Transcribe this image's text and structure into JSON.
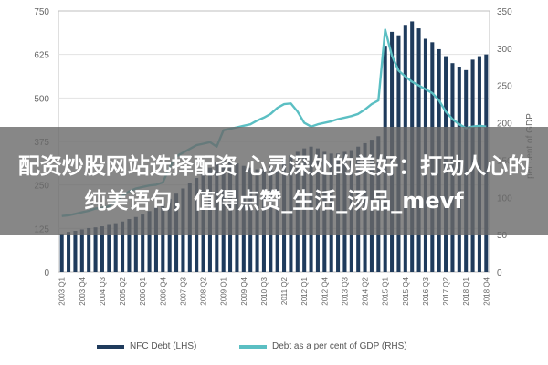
{
  "chart_data": {
    "type": "bar",
    "x_categories": [
      "2003 Q1",
      "2003 Q2",
      "2003 Q3",
      "2003 Q4",
      "2004 Q1",
      "2004 Q2",
      "2004 Q3",
      "2004 Q4",
      "2005 Q1",
      "2005 Q2",
      "2005 Q3",
      "2005 Q4",
      "2006 Q1",
      "2006 Q2",
      "2006 Q3",
      "2006 Q4",
      "2007 Q1",
      "2007 Q2",
      "2007 Q3",
      "2007 Q4",
      "2008 Q1",
      "2008 Q2",
      "2008 Q3",
      "2008 Q4",
      "2009 Q1",
      "2009 Q2",
      "2009 Q3",
      "2009 Q4",
      "2010 Q1",
      "2010 Q2",
      "2010 Q3",
      "2010 Q4",
      "2011 Q1",
      "2011 Q2",
      "2011 Q3",
      "2011 Q4",
      "2012 Q1",
      "2012 Q2",
      "2012 Q3",
      "2012 Q4",
      "2013 Q1",
      "2013 Q2",
      "2013 Q3",
      "2013 Q4",
      "2014 Q1",
      "2014 Q2",
      "2014 Q3",
      "2014 Q4",
      "2015 Q1",
      "2015 Q2",
      "2015 Q3",
      "2015 Q4",
      "2016 Q1",
      "2016 Q2",
      "2016 Q3",
      "2016 Q4",
      "2017 Q1",
      "2017 Q2",
      "2017 Q3",
      "2017 Q4",
      "2018 Q1",
      "2018 Q2",
      "2018 Q3",
      "2018 Q4"
    ],
    "tick_labels": [
      "2003 Q1",
      "2003 Q4",
      "2004 Q3",
      "2005 Q2",
      "2006 Q1",
      "2006 Q4",
      "2007 Q3",
      "2008 Q2",
      "2009 Q1",
      "2009 Q4",
      "2010 Q3",
      "2011 Q2",
      "2012 Q1",
      "2012 Q4",
      "2013 Q3",
      "2014 Q2",
      "2015 Q1",
      "2015 Q4",
      "2016 Q3",
      "2017 Q2",
      "2018 Q1",
      "2018 Q4"
    ],
    "tick_indices": [
      0,
      3,
      6,
      9,
      12,
      15,
      18,
      21,
      24,
      27,
      30,
      33,
      36,
      39,
      42,
      45,
      48,
      51,
      54,
      57,
      60,
      63
    ],
    "left_axis": {
      "min": 0,
      "max": 750,
      "ticks": [
        "0",
        "125",
        "250",
        "375",
        "500",
        "625",
        "750"
      ]
    },
    "right_axis": {
      "min": 0,
      "max": 350,
      "ticks": [
        "0",
        "50",
        "100",
        "150",
        "200",
        "250",
        "300",
        "350"
      ],
      "label": "per cent of GDP"
    },
    "series": [
      {
        "name": "NFC Debt (LHS)",
        "type": "bar",
        "axis": "left",
        "color": "#1f3b5c",
        "values": [
          110,
          115,
          118,
          122,
          126,
          128,
          131,
          135,
          140,
          145,
          152,
          158,
          165,
          175,
          185,
          195,
          210,
          225,
          240,
          255,
          270,
          285,
          300,
          315,
          325,
          318,
          312,
          305,
          300,
          295,
          300,
          305,
          315,
          325,
          335,
          345,
          355,
          360,
          355,
          345,
          340,
          340,
          345,
          350,
          360,
          370,
          380,
          390,
          650,
          690,
          680,
          710,
          720,
          700,
          670,
          660,
          640,
          620,
          600,
          590,
          580,
          610,
          620,
          625
        ]
      },
      {
        "name": "Debt as a per cent of GDP (RHS)",
        "type": "line",
        "axis": "right",
        "color": "#5bbfc3",
        "values": [
          75,
          76,
          78,
          80,
          82,
          85,
          86,
          88,
          95,
          102,
          108,
          112,
          114,
          116,
          117,
          120,
          140,
          155,
          160,
          165,
          170,
          172,
          174,
          168,
          190,
          192,
          194,
          196,
          198,
          203,
          207,
          212,
          220,
          225,
          226,
          215,
          200,
          195,
          198,
          200,
          202,
          205,
          207,
          209,
          212,
          218,
          225,
          230,
          325,
          290,
          270,
          262,
          255,
          250,
          245,
          240,
          230,
          215,
          205,
          198,
          193,
          195,
          196,
          195
        ]
      }
    ]
  },
  "overlay": {
    "line1": "配资炒股网站选择配资 心灵深处的美好：打动人心的",
    "line2": "纯美语句，值得点赞_生活_汤品_mevf"
  },
  "legend": {
    "nfc": "NFC Debt (LHS)",
    "ratio": "Debt as a per cent of GDP (RHS)"
  }
}
